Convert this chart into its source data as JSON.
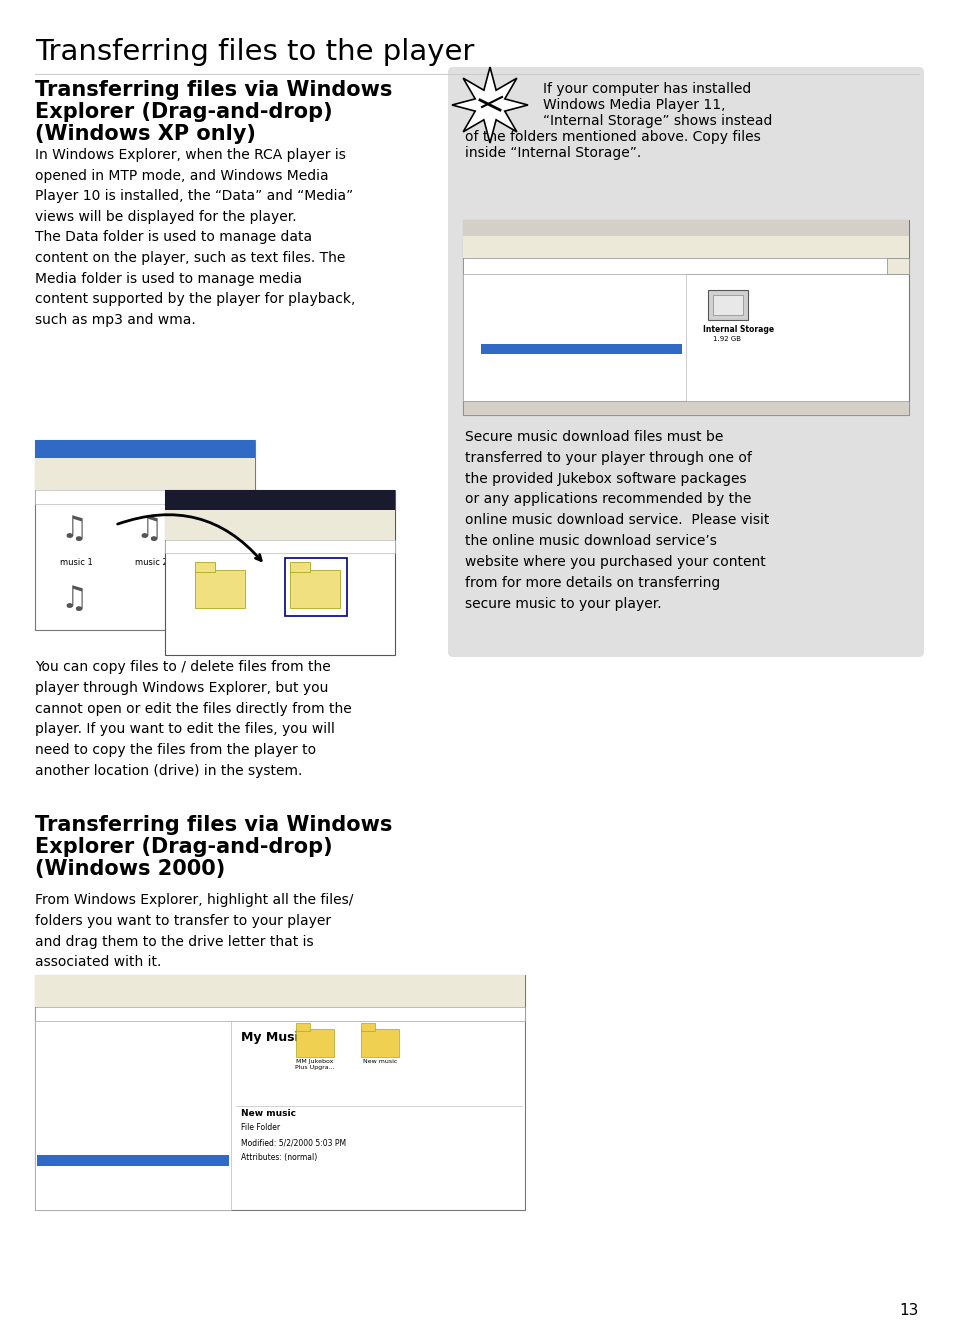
{
  "page_title": "Transferring files to the player",
  "section1_title_line1": "Transferring files via Windows",
  "section1_title_line2": "Explorer (Drag-and-drop)",
  "section1_title_line3": "(Windows XP only)",
  "section1_body": "In Windows Explorer, when the RCA player is\nopened in MTP mode, and Windows Media\nPlayer 10 is installed, the “Data” and “Media”\nviews will be displayed for the player.\nThe Data folder is used to manage data\ncontent on the player, such as text files. The\nMedia folder is used to manage media\ncontent supported by the player for playback,\nsuch as mp3 and wma.",
  "note_line1": "If your computer has installed",
  "note_line2": "Windows Media Player 11,",
  "note_line3": "“Internal Storage” shows instead",
  "note_line4": "of the folders mentioned above. Copy files",
  "note_line5": "inside “Internal Storage”.",
  "note_bg": "#e4e4e4",
  "secure_text": "Secure music download files must be\ntransferred to your player through one of\nthe provided Jukebox software packages\nor any applications recommended by the\nonline music download service.  Please visit\nthe online music download service’s\nwebsite where you purchased your content\nfrom for more details on transferring\nsecure music to your player.",
  "body_text2": "You can copy files to / delete files from the\nplayer through Windows Explorer, but you\ncannot open or edit the files directly from the\nplayer. If you want to edit the files, you will\nneed to copy the files from the player to\nanother location (drive) in the system.",
  "section2_title_line1": "Transferring files via Windows",
  "section2_title_line2": "Explorer (Drag-and-drop)",
  "section2_title_line3": "(Windows 2000)",
  "section2_body": "From Windows Explorer, highlight all the files/\nfolders you want to transfer to your player\nand drag them to the drive letter that is\nassociated with it.",
  "page_number": "13",
  "bg_color": "#ffffff",
  "text_color": "#000000",
  "gray_bg": "#e0e0e0"
}
